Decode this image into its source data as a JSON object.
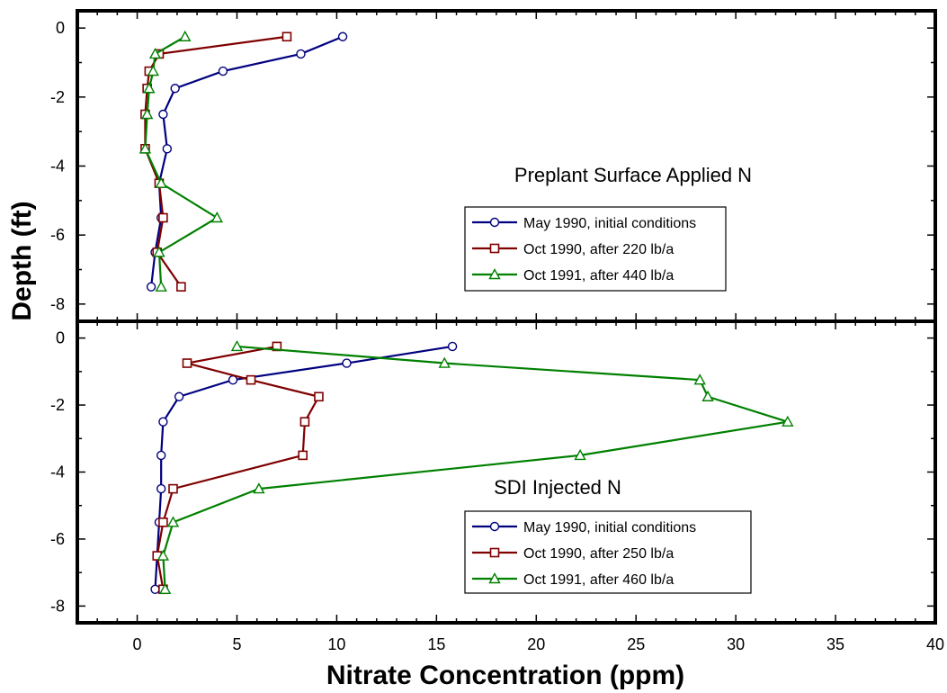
{
  "colors": {
    "blue": "#00007f",
    "red": "#7f0000",
    "green": "#008000"
  },
  "chart_data": {
    "type": "line",
    "xlabel": "Nitrate Concentration (ppm)",
    "ylabel": "Depth (ft)",
    "xlim": [
      -3,
      40
    ],
    "x_ticks": [
      0,
      5,
      10,
      15,
      20,
      25,
      30,
      35,
      40
    ],
    "y_ticks": [
      0,
      -2,
      -4,
      -6,
      -8
    ],
    "panels": [
      {
        "title": "Preplant Surface Applied N",
        "ylim": [
          -8.5,
          0.5
        ],
        "series": [
          {
            "name": "May 1990, initial conditions",
            "color": "blue",
            "marker": "circle",
            "points": [
              [
                10.3,
                -0.25
              ],
              [
                8.2,
                -0.75
              ],
              [
                4.3,
                -1.25
              ],
              [
                1.9,
                -1.75
              ],
              [
                1.3,
                -2.5
              ],
              [
                1.5,
                -3.5
              ],
              [
                1.1,
                -4.5
              ],
              [
                1.2,
                -5.5
              ],
              [
                0.9,
                -6.5
              ],
              [
                0.7,
                -7.5
              ]
            ]
          },
          {
            "name": "Oct 1990, after 220 lb/a",
            "color": "red",
            "marker": "square",
            "points": [
              [
                7.5,
                -0.25
              ],
              [
                1.1,
                -0.75
              ],
              [
                0.6,
                -1.25
              ],
              [
                0.5,
                -1.75
              ],
              [
                0.4,
                -2.5
              ],
              [
                0.4,
                -3.5
              ],
              [
                1.1,
                -4.5
              ],
              [
                1.3,
                -5.5
              ],
              [
                1.0,
                -6.5
              ],
              [
                2.2,
                -7.5
              ]
            ]
          },
          {
            "name": "Oct 1991, after 440 lb/a",
            "color": "green",
            "marker": "triangle",
            "points": [
              [
                2.4,
                -0.25
              ],
              [
                0.9,
                -0.75
              ],
              [
                0.8,
                -1.25
              ],
              [
                0.6,
                -1.75
              ],
              [
                0.5,
                -2.5
              ],
              [
                0.4,
                -3.5
              ],
              [
                1.2,
                -4.5
              ],
              [
                4.0,
                -5.5
              ],
              [
                1.1,
                -6.5
              ],
              [
                1.2,
                -7.5
              ]
            ]
          }
        ]
      },
      {
        "title": "SDI Injected N",
        "ylim": [
          -8.5,
          0.5
        ],
        "series": [
          {
            "name": "May 1990, initial conditions",
            "color": "blue",
            "marker": "circle",
            "points": [
              [
                15.8,
                -0.25
              ],
              [
                10.5,
                -0.75
              ],
              [
                4.8,
                -1.25
              ],
              [
                2.1,
                -1.75
              ],
              [
                1.3,
                -2.5
              ],
              [
                1.2,
                -3.5
              ],
              [
                1.2,
                -4.5
              ],
              [
                1.1,
                -5.5
              ],
              [
                1.0,
                -6.5
              ],
              [
                0.9,
                -7.5
              ]
            ]
          },
          {
            "name": "Oct 1990, after 250 lb/a",
            "color": "red",
            "marker": "square",
            "points": [
              [
                7.0,
                -0.25
              ],
              [
                2.5,
                -0.75
              ],
              [
                5.7,
                -1.25
              ],
              [
                9.1,
                -1.75
              ],
              [
                8.4,
                -2.5
              ],
              [
                8.3,
                -3.5
              ],
              [
                1.8,
                -4.5
              ],
              [
                1.3,
                -5.5
              ],
              [
                1.0,
                -6.5
              ],
              [
                1.3,
                -7.5
              ]
            ]
          },
          {
            "name": "Oct 1991, after 460 lb/a",
            "color": "green",
            "marker": "triangle",
            "points": [
              [
                5.0,
                -0.25
              ],
              [
                15.4,
                -0.75
              ],
              [
                28.2,
                -1.25
              ],
              [
                28.6,
                -1.75
              ],
              [
                32.6,
                -2.5
              ],
              [
                22.2,
                -3.5
              ],
              [
                6.1,
                -4.5
              ],
              [
                1.8,
                -5.5
              ],
              [
                1.3,
                -6.5
              ],
              [
                1.4,
                -7.5
              ]
            ]
          }
        ]
      }
    ]
  }
}
